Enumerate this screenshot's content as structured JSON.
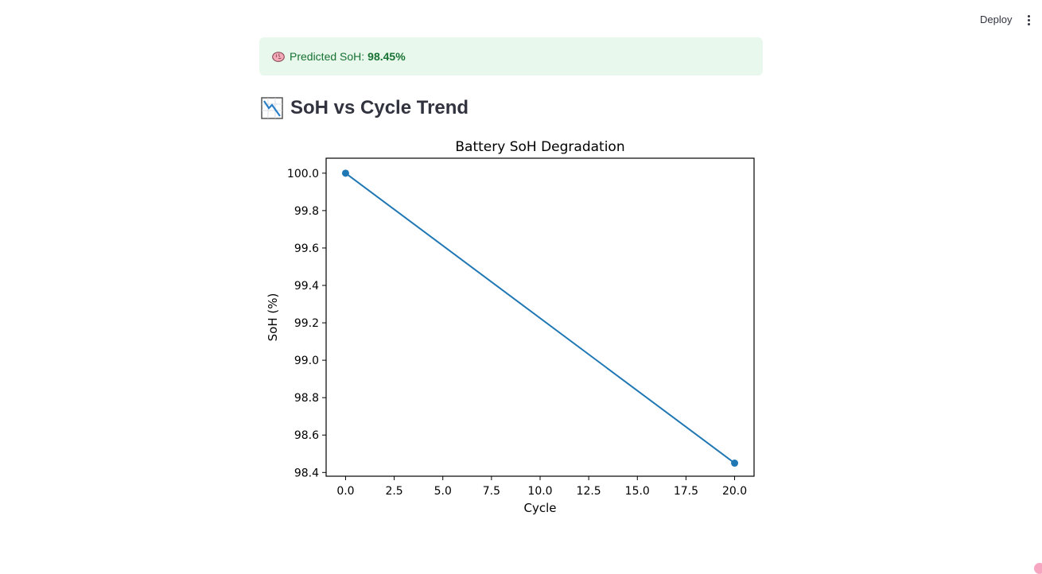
{
  "header": {
    "deploy_label": "Deploy",
    "menu_icon": "more-vertical-icon"
  },
  "alert": {
    "icon": "brain-icon",
    "label": "Predicted SoH:",
    "value": "98.45%",
    "background": "#e8f8ec",
    "text_color": "#177233"
  },
  "section": {
    "icon": "chart-decreasing-icon",
    "title": "SoH vs Cycle Trend"
  },
  "chart_data": {
    "type": "line",
    "title": "Battery SoH Degradation",
    "xlabel": "Cycle",
    "ylabel": "SoH (%)",
    "xlim": [
      -1,
      21
    ],
    "ylim": [
      98.38,
      100.08
    ],
    "xticks": [
      "0.0",
      "2.5",
      "5.0",
      "7.5",
      "10.0",
      "12.5",
      "15.0",
      "17.5",
      "20.0"
    ],
    "yticks": [
      "98.4",
      "98.6",
      "98.8",
      "99.0",
      "99.2",
      "99.4",
      "99.6",
      "99.8",
      "100.0"
    ],
    "grid": false,
    "series": [
      {
        "x": [
          0,
          20
        ],
        "y": [
          100.0,
          98.45
        ],
        "color": "#1f77b4",
        "marker": "circle"
      }
    ]
  }
}
